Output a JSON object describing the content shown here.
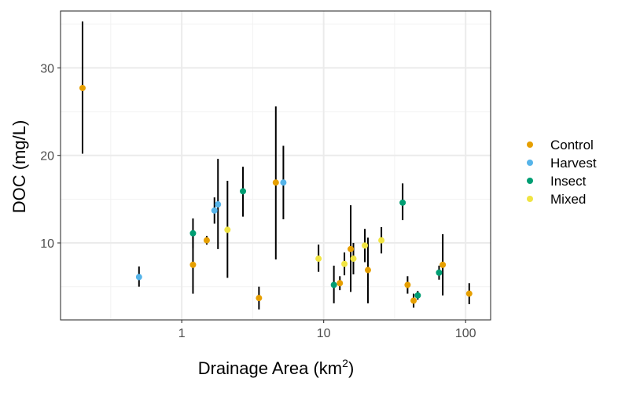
{
  "chart_data": {
    "type": "scatter",
    "title": "",
    "xlabel": "Drainage Area (km²)",
    "xlabel_main": "Drainage Area (km",
    "xlabel_sup": "2",
    "xlabel_close": ")",
    "ylabel": "DOC (mg/L)",
    "x_scale": "log10",
    "xlim": [
      0.14,
      150
    ],
    "ylim": [
      1.2,
      36.5
    ],
    "x_ticks": [
      1,
      10,
      100
    ],
    "x_tick_labels": [
      "1",
      "10",
      "100"
    ],
    "x_minor_ticks": [
      0.316,
      3.16,
      31.6
    ],
    "y_ticks": [
      10,
      20,
      30
    ],
    "y_tick_labels": [
      "10",
      "20",
      "30"
    ],
    "y_minor_ticks": [
      5,
      15,
      25,
      35
    ],
    "grid": true,
    "legend_position": "right",
    "series": [
      {
        "name": "Control",
        "color": "#E69F00",
        "points": [
          {
            "x": 0.2,
            "y": 27.7,
            "ymin": 20.2,
            "ymax": 35.3
          },
          {
            "x": 1.2,
            "y": 7.5,
            "ymin": 4.2,
            "ymax": 10.8
          },
          {
            "x": 1.5,
            "y": 10.3,
            "ymin": 9.8,
            "ymax": 10.8
          },
          {
            "x": 3.5,
            "y": 3.7,
            "ymin": 2.4,
            "ymax": 5.0
          },
          {
            "x": 4.6,
            "y": 16.9,
            "ymin": 8.1,
            "ymax": 25.6
          },
          {
            "x": 13.0,
            "y": 5.4,
            "ymin": 4.6,
            "ymax": 6.2
          },
          {
            "x": 15.5,
            "y": 9.3,
            "ymin": 4.4,
            "ymax": 14.3
          },
          {
            "x": 20.5,
            "y": 6.9,
            "ymin": 3.1,
            "ymax": 10.6
          },
          {
            "x": 39.0,
            "y": 5.2,
            "ymin": 4.2,
            "ymax": 6.2
          },
          {
            "x": 43.0,
            "y": 3.4,
            "ymin": 2.6,
            "ymax": 4.2
          },
          {
            "x": 69.0,
            "y": 7.5,
            "ymin": 4.0,
            "ymax": 11.0
          },
          {
            "x": 106.0,
            "y": 4.2,
            "ymin": 3.0,
            "ymax": 5.4
          }
        ]
      },
      {
        "name": "Harvest",
        "color": "#56B4E9",
        "points": [
          {
            "x": 0.5,
            "y": 6.1,
            "ymin": 5.0,
            "ymax": 7.3
          },
          {
            "x": 1.7,
            "y": 13.7,
            "ymin": 12.2,
            "ymax": 15.2
          },
          {
            "x": 1.8,
            "y": 14.4,
            "ymin": 9.3,
            "ymax": 19.6
          },
          {
            "x": 5.2,
            "y": 16.9,
            "ymin": 12.7,
            "ymax": 21.1
          }
        ]
      },
      {
        "name": "Insect",
        "color": "#009E73",
        "points": [
          {
            "x": 1.2,
            "y": 11.1,
            "ymin": 9.4,
            "ymax": 12.8
          },
          {
            "x": 2.7,
            "y": 15.9,
            "ymin": 13.0,
            "ymax": 18.7
          },
          {
            "x": 11.8,
            "y": 5.2,
            "ymin": 3.1,
            "ymax": 7.4
          },
          {
            "x": 36.0,
            "y": 14.6,
            "ymin": 12.6,
            "ymax": 16.8
          },
          {
            "x": 46.0,
            "y": 4.0,
            "ymin": 3.5,
            "ymax": 4.5
          },
          {
            "x": 65.0,
            "y": 6.6,
            "ymin": 5.8,
            "ymax": 7.4
          }
        ]
      },
      {
        "name": "Mixed",
        "color": "#F0E442",
        "points": [
          {
            "x": 2.1,
            "y": 11.5,
            "ymin": 6.0,
            "ymax": 17.1
          },
          {
            "x": 9.2,
            "y": 8.2,
            "ymin": 6.7,
            "ymax": 9.8
          },
          {
            "x": 14.0,
            "y": 7.6,
            "ymin": 6.3,
            "ymax": 8.9
          },
          {
            "x": 16.2,
            "y": 8.2,
            "ymin": 6.4,
            "ymax": 10.0
          },
          {
            "x": 19.5,
            "y": 9.7,
            "ymin": 7.8,
            "ymax": 11.6
          },
          {
            "x": 25.5,
            "y": 10.3,
            "ymin": 8.8,
            "ymax": 11.8
          }
        ]
      }
    ]
  }
}
